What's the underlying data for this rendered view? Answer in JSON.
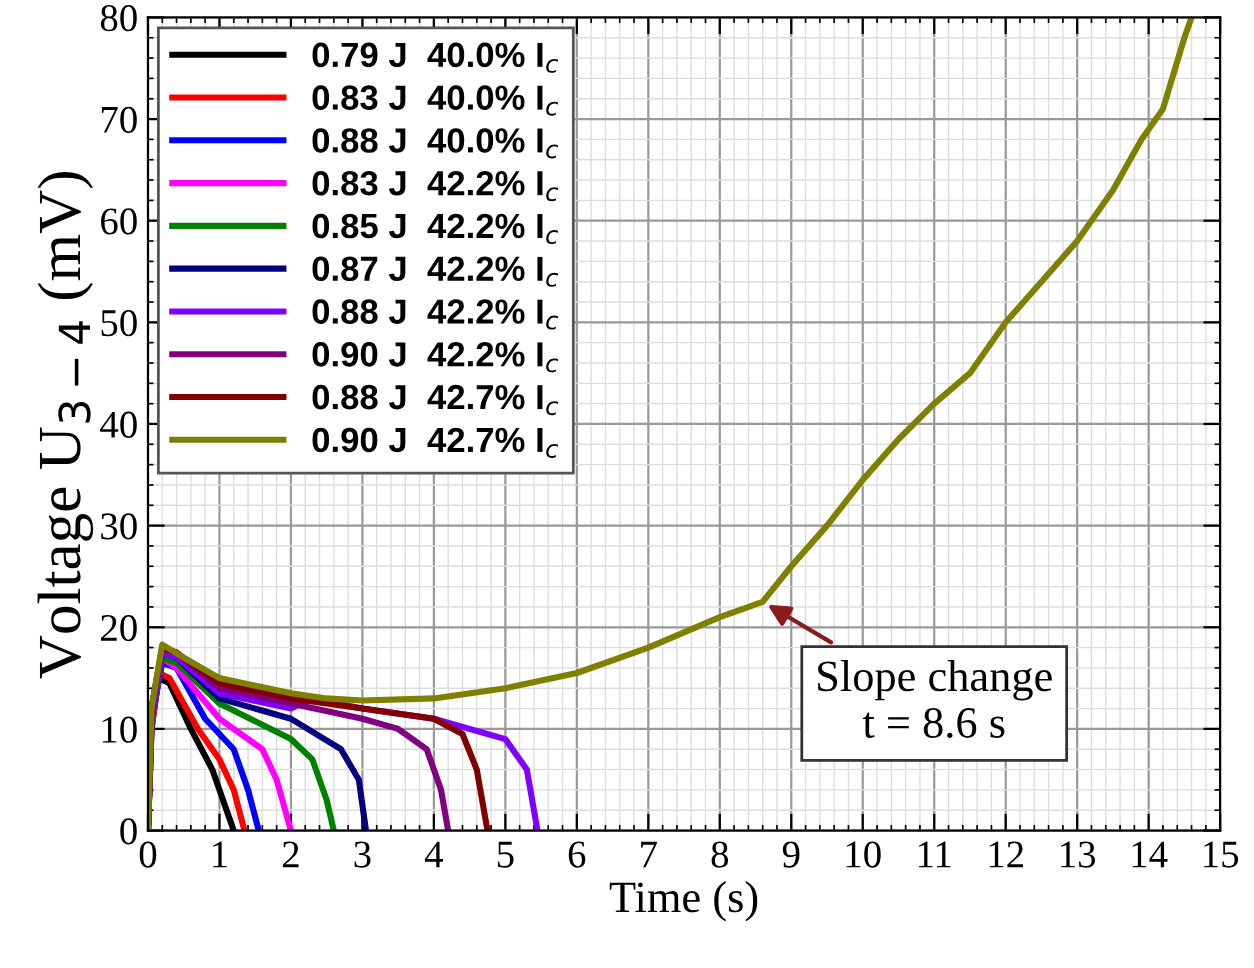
{
  "chart_data": {
    "type": "line",
    "xlabel": "Time (s)",
    "ylabel": "Voltage U$_{3−4}$ (mV)",
    "xlim": [
      0,
      15
    ],
    "ylim": [
      0,
      80
    ],
    "xticks": [
      0,
      1,
      2,
      3,
      4,
      5,
      6,
      7,
      8,
      9,
      10,
      11,
      12,
      13,
      14,
      15
    ],
    "yticks": [
      0,
      10,
      20,
      30,
      40,
      50,
      60,
      70,
      80
    ],
    "grid": true,
    "legend": "top left",
    "marker": "none",
    "line_style": "solid",
    "annotations": [
      {
        "text": "Slope change\nt = 8.6 s",
        "x": 8.6,
        "y": 22.5
      }
    ],
    "series": [
      {
        "name": "0.79 J  40.0% I$_{c}$",
        "color": "#000000",
        "x": [
          0,
          0.05,
          0.15,
          0.3,
          0.6,
          0.9,
          1.1,
          1.2
        ],
        "values": [
          0,
          10,
          15,
          14.5,
          10,
          6,
          2,
          0
        ]
      },
      {
        "name": "0.83 J  40.0% I$_{c}$",
        "color": "#ff0000",
        "x": [
          0,
          0.05,
          0.15,
          0.3,
          0.7,
          1.0,
          1.2,
          1.35
        ],
        "values": [
          0,
          10,
          15.5,
          15,
          10,
          7,
          4,
          0
        ]
      },
      {
        "name": "0.88 J  40.0% I$_{c}$",
        "color": "#0000ff",
        "x": [
          0,
          0.05,
          0.2,
          0.4,
          0.8,
          1.2,
          1.4,
          1.55
        ],
        "values": [
          0,
          11,
          16.5,
          16,
          11,
          8,
          4,
          0
        ]
      },
      {
        "name": "0.83 J  42.2% I$_{c}$",
        "color": "#ff00ff",
        "x": [
          0,
          0.05,
          0.2,
          0.4,
          1.0,
          1.6,
          1.8,
          2.0
        ],
        "values": [
          0,
          11,
          17,
          16,
          11,
          8,
          5,
          0
        ]
      },
      {
        "name": "0.85 J  42.2% I$_{c}$",
        "color": "#008000",
        "x": [
          0,
          0.05,
          0.2,
          0.4,
          1.0,
          2.0,
          2.3,
          2.5,
          2.6
        ],
        "values": [
          0,
          11,
          17,
          16.5,
          12.5,
          9,
          7,
          3,
          0
        ]
      },
      {
        "name": "0.87 J  42.2% I$_{c}$",
        "color": "#000080",
        "x": [
          0,
          0.05,
          0.2,
          0.4,
          1.0,
          2.0,
          2.7,
          2.95,
          3.05
        ],
        "values": [
          0,
          11,
          17.5,
          17,
          13,
          11,
          8,
          5,
          0
        ]
      },
      {
        "name": "0.88 J  42.2% I$_{c}$",
        "color": "#8000ff",
        "x": [
          0,
          0.05,
          0.2,
          0.4,
          1.0,
          2.0,
          2.3,
          3.0,
          4.0,
          5.0,
          5.3,
          5.45
        ],
        "values": [
          0,
          11,
          17.5,
          17,
          13.5,
          12,
          13,
          12,
          11,
          9,
          6,
          0
        ]
      },
      {
        "name": "0.90 J  42.2% I$_{c}$",
        "color": "#800080",
        "x": [
          0,
          0.05,
          0.2,
          0.4,
          1.0,
          2.0,
          3.0,
          3.5,
          3.9,
          4.1,
          4.2
        ],
        "values": [
          0,
          12,
          18,
          17.5,
          14,
          12.5,
          11,
          10,
          8,
          4,
          0
        ]
      },
      {
        "name": "0.88 J  42.7% I$_{c}$",
        "color": "#800000",
        "x": [
          0,
          0.05,
          0.2,
          0.4,
          1.0,
          2.0,
          3.0,
          4.0,
          4.4,
          4.6,
          4.75
        ],
        "values": [
          0,
          12,
          18,
          17.5,
          14.5,
          13,
          12,
          11,
          9.5,
          6,
          0
        ]
      },
      {
        "name": "0.90 J  42.7% I$_{c}$",
        "color": "#808000",
        "x": [
          0,
          0.05,
          0.2,
          0.5,
          1,
          2,
          2.5,
          3,
          4,
          5,
          6,
          7,
          8,
          8.6,
          9,
          9.5,
          10,
          10.5,
          11,
          11.5,
          12,
          12.5,
          13,
          13.5,
          13.9,
          14.2,
          14.5,
          14.6
        ],
        "values": [
          0,
          12,
          18.3,
          17,
          15,
          13.5,
          13,
          12.8,
          13,
          14,
          15.5,
          18,
          21,
          22.5,
          26,
          30,
          34.5,
          38.5,
          42,
          45,
          50,
          54,
          58,
          63,
          68,
          71,
          78,
          80
        ]
      }
    ]
  }
}
